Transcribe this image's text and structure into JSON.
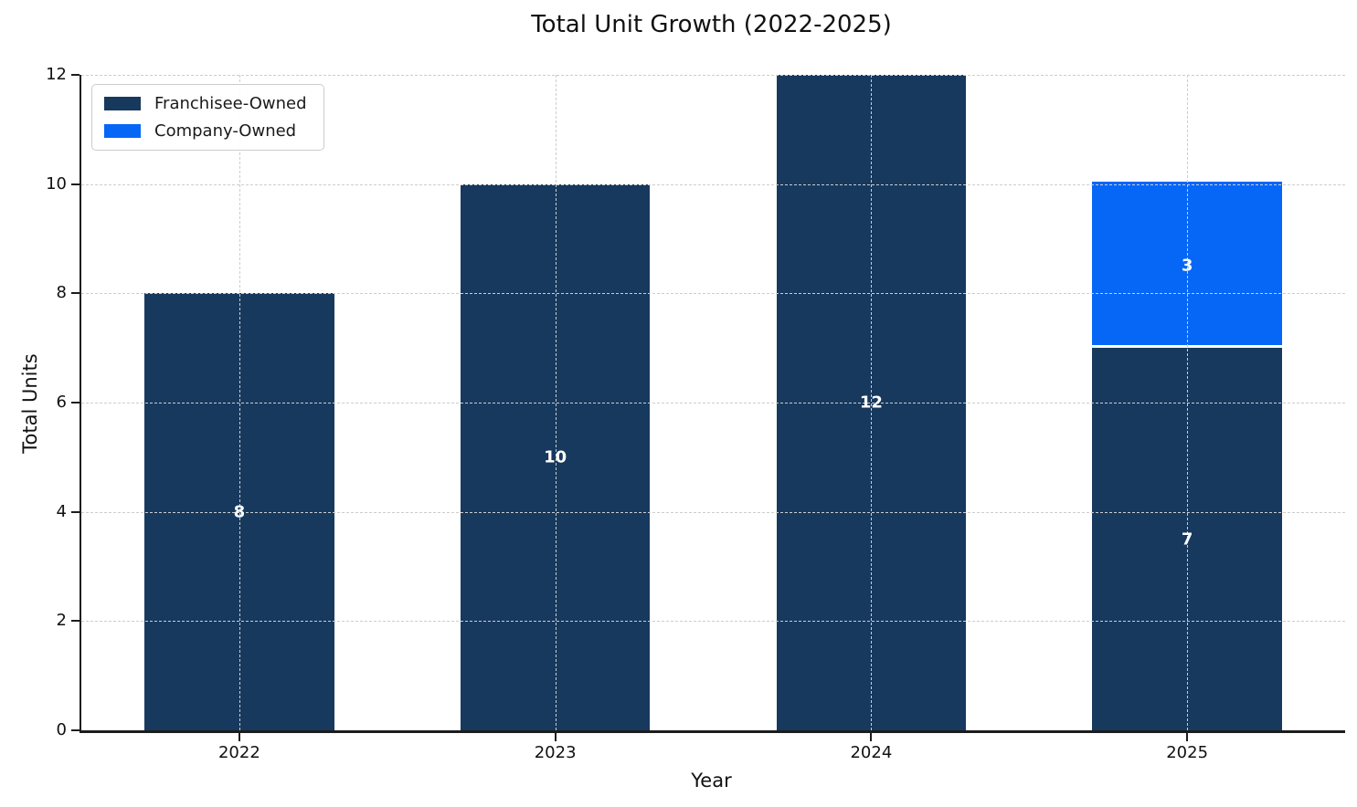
{
  "chart_data": {
    "type": "bar",
    "stacked": true,
    "title": "Total Unit Growth (2022-2025)",
    "xlabel": "Year",
    "ylabel": "Total Units",
    "categories": [
      "2022",
      "2023",
      "2024",
      "2025"
    ],
    "series": [
      {
        "name": "Franchisee-Owned",
        "color": "#17395E",
        "values": [
          8,
          10,
          12,
          7
        ]
      },
      {
        "name": "Company-Owned",
        "color": "#0667F7",
        "values": [
          0,
          0,
          0,
          3
        ]
      }
    ],
    "bar_labels": {
      "Franchisee-Owned": [
        "8",
        "10",
        "12",
        "7"
      ],
      "Company-Owned": [
        "",
        "",
        "",
        "3"
      ]
    },
    "ylim": [
      0,
      12
    ],
    "yticks": [
      0,
      2,
      4,
      6,
      8,
      10,
      12
    ],
    "grid": "dashed-both-axes",
    "legend_position": "upper-left",
    "segment_divider_color": "#FFFFFF",
    "bar_label_color": "#FFFFFF",
    "axis_color": "#1C1C1C",
    "grid_color": "#CDCDCD"
  }
}
